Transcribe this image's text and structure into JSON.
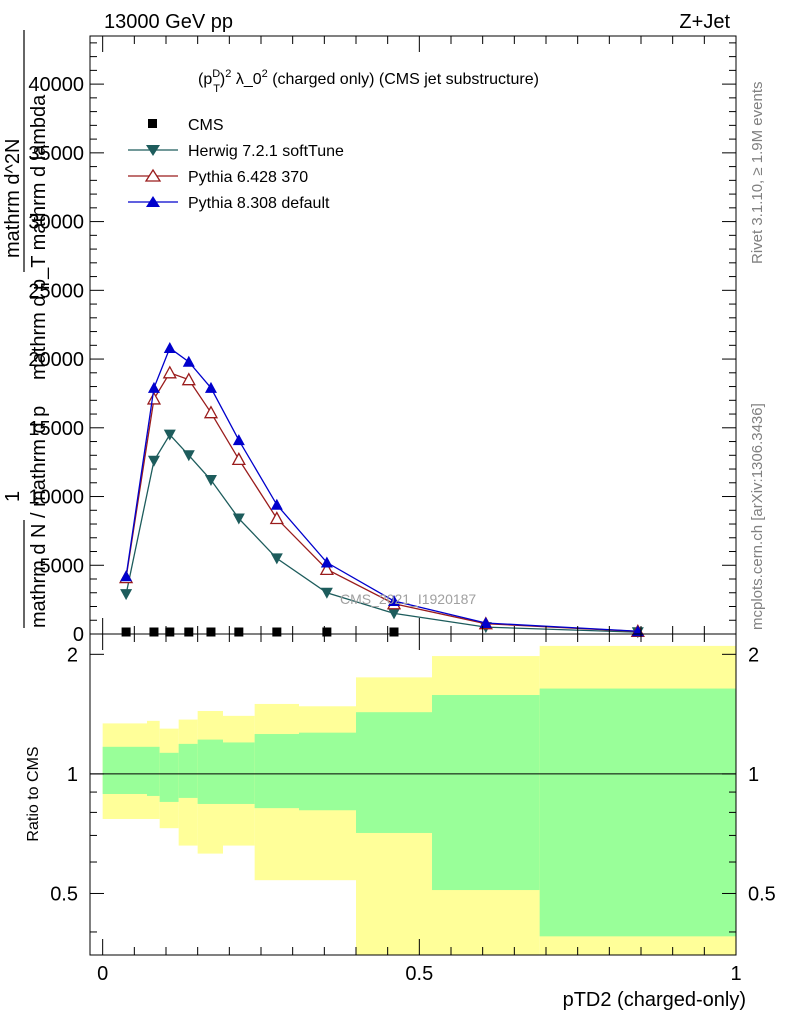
{
  "header": {
    "left": "13000 GeV pp",
    "right": "Z+Jet"
  },
  "side_labels": {
    "rivet": "Rivet 3.1.10, ≥ 1.9M events",
    "mcplots": "mcplots.cern.ch [arXiv:1306.3436]"
  },
  "analysis_label": "CMS_2021_I1920187",
  "colors": {
    "cms": "#000000",
    "herwig": "#1d5c5c",
    "pythia6": "#9a1c1c",
    "pythia8": "#0000cc",
    "band_outer": "#ffff99",
    "band_inner": "#99ff99"
  },
  "chart_data": [
    {
      "type": "line",
      "title": "(p_T^D)^2 λ_0^2 (charged only) (CMS jet substructure)",
      "title_parts": {
        "base": "(p",
        "sup1": "D",
        "sub1": "T",
        "close": ")",
        "sup2": "2",
        "mid": " λ_0",
        "sup3": "2",
        "rest": " (charged only) (CMS jet substructure)"
      },
      "ylabel_lines": [
        "1",
        "mathrm d N / mathrm d p",
        "mathrm d^2N",
        "mathrm d p_T mathrm d lambda"
      ],
      "ylim": [
        0,
        43500
      ],
      "yticks": [
        0,
        5000,
        10000,
        15000,
        20000,
        25000,
        30000,
        35000,
        40000
      ],
      "ytick_labels": [
        "0",
        "5000",
        "10000",
        "15000",
        "20000",
        "25000",
        "30000",
        "35000",
        "40000"
      ],
      "xlim": [
        -0.02,
        1.0
      ],
      "legend_position": "top-left",
      "series": [
        {
          "name": "CMS",
          "marker": "square",
          "x": [
            0.037,
            0.081,
            0.106,
            0.136,
            0.171,
            0.215,
            0.275,
            0.354,
            0.46
          ],
          "y": [
            0,
            0,
            0,
            0,
            0,
            0,
            0,
            0,
            0
          ]
        },
        {
          "name": "Herwig 7.2.1 softTune",
          "marker": "triangle-down",
          "x": [
            0.037,
            0.081,
            0.106,
            0.136,
            0.171,
            0.215,
            0.275,
            0.354,
            0.46,
            0.605,
            0.845
          ],
          "y": [
            2900,
            12600,
            14500,
            13000,
            11200,
            8400,
            5500,
            3000,
            1500,
            500,
            130
          ]
        },
        {
          "name": "Pythia 6.428 370",
          "marker": "triangle-up-open",
          "x": [
            0.037,
            0.081,
            0.106,
            0.136,
            0.171,
            0.215,
            0.275,
            0.354,
            0.46,
            0.605,
            0.845
          ],
          "y": [
            4100,
            17100,
            19000,
            18500,
            16100,
            12700,
            8400,
            4700,
            2200,
            750,
            190
          ]
        },
        {
          "name": "Pythia 8.308 default",
          "marker": "triangle-up",
          "x": [
            0.037,
            0.081,
            0.106,
            0.136,
            0.171,
            0.215,
            0.275,
            0.354,
            0.46,
            0.605,
            0.845
          ],
          "y": [
            4200,
            17900,
            20800,
            19800,
            17900,
            14100,
            9400,
            5200,
            2400,
            800,
            200
          ]
        }
      ]
    },
    {
      "type": "area",
      "ylabel": "Ratio to CMS",
      "xlabel": "pTD2 (charged-only)",
      "ylim": [
        0.35,
        2.25
      ],
      "yticks": [
        0.5,
        1,
        2
      ],
      "ytick_labels": [
        "0.5",
        "1",
        "2"
      ],
      "xticks": [
        0,
        0.5,
        1
      ],
      "xtick_labels": [
        "0",
        "0.5",
        "1"
      ],
      "xlim": [
        -0.02,
        1.0
      ],
      "reference_line": 1,
      "bins": {
        "edges": [
          0.0,
          0.07,
          0.09,
          0.12,
          0.15,
          0.19,
          0.24,
          0.31,
          0.4,
          0.52,
          0.69,
          1.0
        ],
        "outer_lo": [
          0.77,
          0.77,
          0.73,
          0.66,
          0.63,
          0.66,
          0.54,
          0.54,
          0.3,
          0.3,
          0.3
        ],
        "outer_hi": [
          1.34,
          1.36,
          1.3,
          1.37,
          1.44,
          1.4,
          1.5,
          1.48,
          1.75,
          1.98,
          2.1
        ],
        "inner_lo": [
          0.89,
          0.88,
          0.85,
          0.87,
          0.84,
          0.84,
          0.82,
          0.81,
          0.71,
          0.51,
          0.39
        ],
        "inner_hi": [
          1.17,
          1.17,
          1.13,
          1.19,
          1.22,
          1.2,
          1.26,
          1.27,
          1.43,
          1.58,
          1.64
        ]
      }
    }
  ]
}
